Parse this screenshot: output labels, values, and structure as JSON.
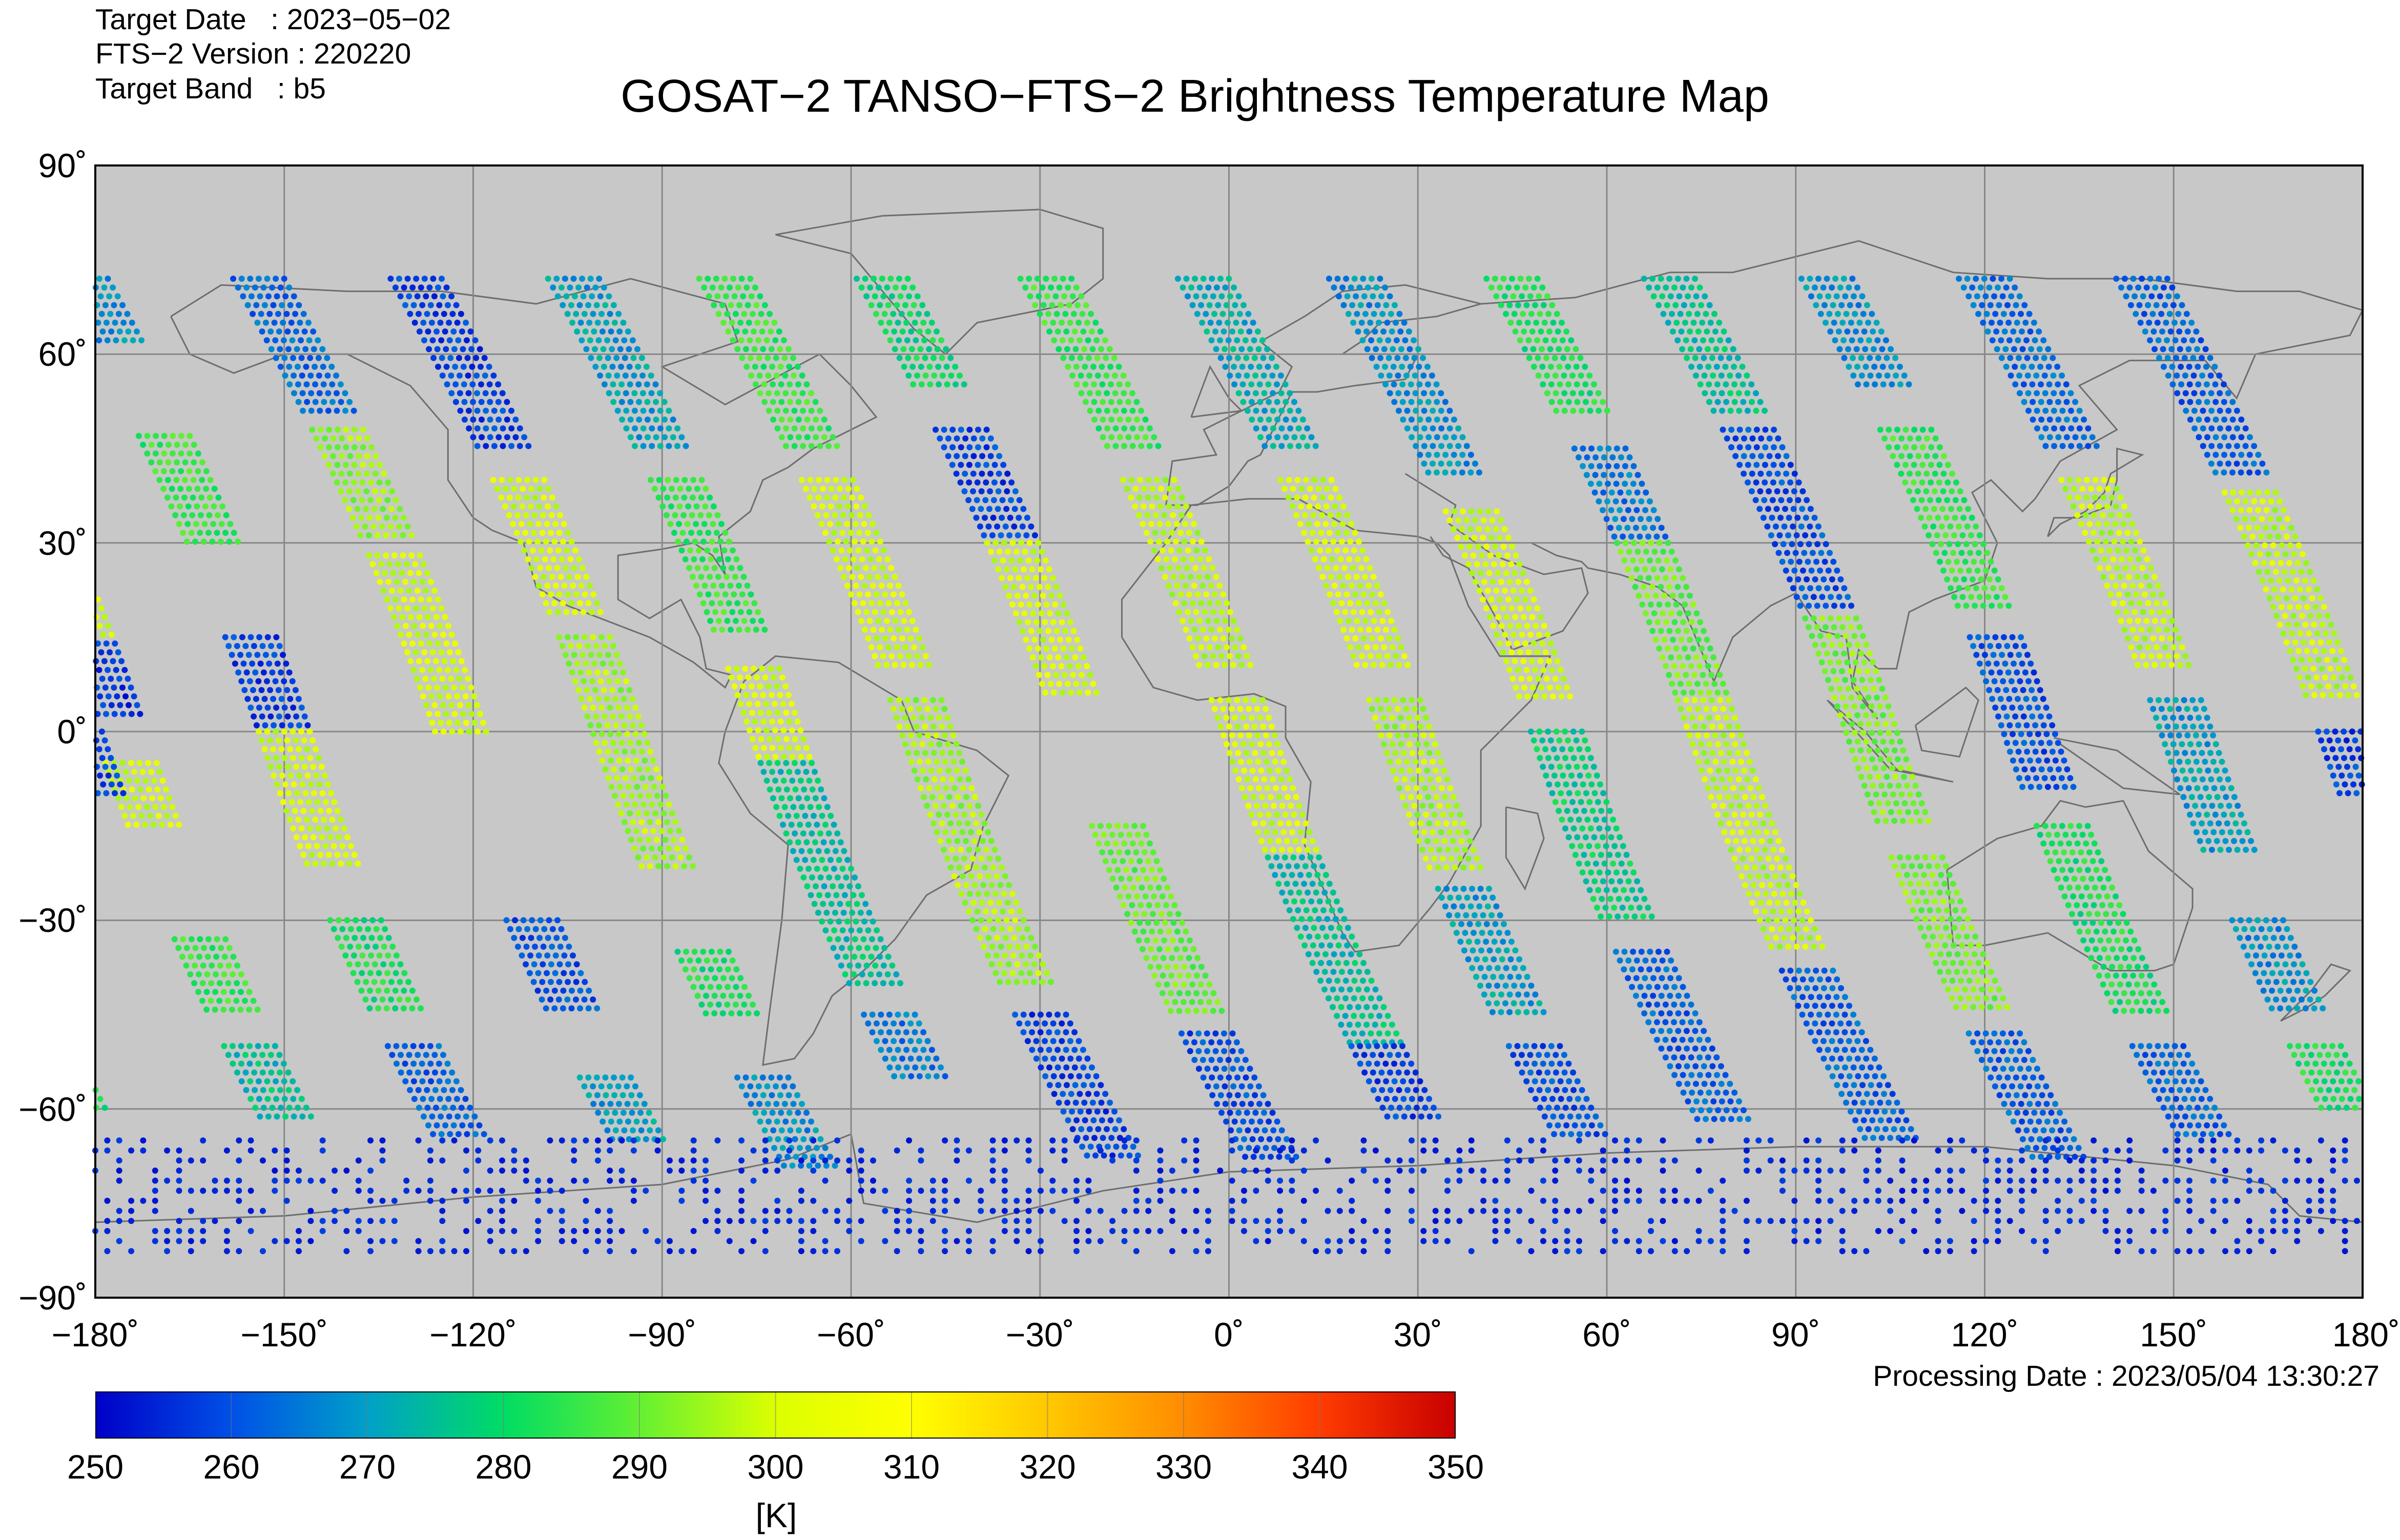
{
  "header": {
    "target_date": "Target Date   : 2023−05−02",
    "fts_version": "FTS−2 Version : 220220",
    "target_band": "Target Band   : b5",
    "title": "GOSAT−2 TANSO−FTS−2 Brightness Temperature Map"
  },
  "map": {
    "background_color": "#c8c8c8",
    "grid_color": "#888888",
    "coast_color": "#6e6e6e",
    "lat_ticks": [
      "90˚",
      "60˚",
      "30˚",
      "0˚",
      "−30˚",
      "−60˚",
      "−90˚"
    ],
    "lon_ticks": [
      "−180˚",
      "−150˚",
      "−120˚",
      "−90˚",
      "−60˚",
      "−30˚",
      "0˚",
      "30˚",
      "60˚",
      "90˚",
      "120˚",
      "150˚",
      "180˚"
    ]
  },
  "footer": {
    "processing_date": "Processing Date : 2023/05/04 13:30:27"
  },
  "colorbar": {
    "ticks": [
      "250",
      "260",
      "270",
      "280",
      "290",
      "300",
      "310",
      "320",
      "330",
      "340",
      "350"
    ],
    "unit": "[K]",
    "colors": [
      "#0000c8",
      "#0050e6",
      "#00a0c8",
      "#00dc64",
      "#64f032",
      "#dcff00",
      "#ffff00",
      "#ffc800",
      "#ff8c00",
      "#ff3c00",
      "#c80000"
    ]
  },
  "chart_data": {
    "type": "map",
    "title": "GOSAT−2 TANSO−FTS−2 Brightness Temperature Map",
    "lon_range": [
      -180,
      180
    ],
    "lat_range": [
      -90,
      90
    ],
    "colorbar_range": [
      250,
      350
    ],
    "colorbar_unit": "[K]",
    "tracks": [
      {
        "equator_lon": -176,
        "segments": [
          {
            "lat": [
              72,
              36
            ],
            "temp": 262
          },
          {
            "lat": [
              35,
              15
            ],
            "temp": 300
          },
          {
            "lat": [
              14,
              2
            ],
            "temp": 256
          },
          {
            "lat": [
              -5,
              -15
            ],
            "temp": 300
          },
          {
            "lat": [
              -33,
              -45
            ],
            "temp": 285
          },
          {
            "lat": [
              -50,
              -62
            ],
            "temp": 275
          }
        ]
      },
      {
        "equator_lon": -150,
        "segments": [
          {
            "lat": [
              72,
              62
            ],
            "temp": 268
          },
          {
            "lat": [
              47,
              30
            ],
            "temp": 285
          },
          {
            "lat": [
              15,
              0
            ],
            "temp": 258
          },
          {
            "lat": [
              0,
              -22
            ],
            "temp": 300
          },
          {
            "lat": [
              -30,
              -45
            ],
            "temp": 282
          },
          {
            "lat": [
              -50,
              -65
            ],
            "temp": 262
          }
        ]
      },
      {
        "equator_lon": -122,
        "segments": [
          {
            "lat": [
              72,
              50
            ],
            "temp": 263
          },
          {
            "lat": [
              48,
              30
            ],
            "temp": 294
          },
          {
            "lat": [
              28,
              0
            ],
            "temp": 300
          },
          {
            "lat": [
              -30,
              -45
            ],
            "temp": 260
          },
          {
            "lat": [
              -55,
              -65
            ],
            "temp": 270
          }
        ]
      },
      {
        "equator_lon": -97,
        "segments": [
          {
            "lat": [
              72,
              45
            ],
            "temp": 258
          },
          {
            "lat": [
              40,
              18
            ],
            "temp": 300
          },
          {
            "lat": [
              15,
              -22
            ],
            "temp": 295
          },
          {
            "lat": [
              -35,
              -45
            ],
            "temp": 282
          },
          {
            "lat": [
              -55,
              -70
            ],
            "temp": 268
          }
        ]
      },
      {
        "equator_lon": -72,
        "segments": [
          {
            "lat": [
              72,
              45
            ],
            "temp": 270
          },
          {
            "lat": [
              40,
              15
            ],
            "temp": 285
          },
          {
            "lat": [
              10,
              -5
            ],
            "temp": 300
          },
          {
            "lat": [
              -5,
              -40
            ],
            "temp": 275
          },
          {
            "lat": [
              -45,
              -55
            ],
            "temp": 265
          }
        ]
      },
      {
        "equator_lon": -48,
        "segments": [
          {
            "lat": [
              72,
              45
            ],
            "temp": 285
          },
          {
            "lat": [
              40,
              10
            ],
            "temp": 300
          },
          {
            "lat": [
              5,
              -40
            ],
            "temp": 295
          },
          {
            "lat": [
              -45,
              -68
            ],
            "temp": 258
          }
        ]
      },
      {
        "equator_lon": -23,
        "segments": [
          {
            "lat": [
              72,
              55
            ],
            "temp": 280
          },
          {
            "lat": [
              48,
              30
            ],
            "temp": 258
          },
          {
            "lat": [
              30,
              5
            ],
            "temp": 300
          },
          {
            "lat": [
              -15,
              -45
            ],
            "temp": 290
          },
          {
            "lat": [
              -48,
              -68
            ],
            "temp": 260
          }
        ]
      },
      {
        "equator_lon": 3,
        "segments": [
          {
            "lat": [
              72,
              45
            ],
            "temp": 285
          },
          {
            "lat": [
              40,
              10
            ],
            "temp": 298
          },
          {
            "lat": [
              5,
              -20
            ],
            "temp": 300
          },
          {
            "lat": [
              -20,
              -50
            ],
            "temp": 275
          },
          {
            "lat": [
              -50,
              -62
            ],
            "temp": 258
          }
        ]
      },
      {
        "equator_lon": 28,
        "segments": [
          {
            "lat": [
              72,
              45
            ],
            "temp": 272
          },
          {
            "lat": [
              40,
              10
            ],
            "temp": 300
          },
          {
            "lat": [
              5,
              -22
            ],
            "temp": 296
          },
          {
            "lat": [
              -25,
              -45
            ],
            "temp": 270
          },
          {
            "lat": [
              -50,
              -65
            ],
            "temp": 260
          }
        ]
      },
      {
        "equator_lon": 52,
        "segments": [
          {
            "lat": [
              72,
              40
            ],
            "temp": 268
          },
          {
            "lat": [
              35,
              5
            ],
            "temp": 300
          },
          {
            "lat": [
              0,
              -30
            ],
            "temp": 278
          },
          {
            "lat": [
              -35,
              -62
            ],
            "temp": 262
          }
        ]
      },
      {
        "equator_lon": 77,
        "segments": [
          {
            "lat": [
              72,
              50
            ],
            "temp": 282
          },
          {
            "lat": [
              45,
              30
            ],
            "temp": 265
          },
          {
            "lat": [
              30,
              5
            ],
            "temp": 290
          },
          {
            "lat": [
              5,
              -35
            ],
            "temp": 298
          },
          {
            "lat": [
              -38,
              -65
            ],
            "temp": 262
          }
        ]
      },
      {
        "equator_lon": 102,
        "segments": [
          {
            "lat": [
              72,
              50
            ],
            "temp": 275
          },
          {
            "lat": [
              48,
              20
            ],
            "temp": 260
          },
          {
            "lat": [
              18,
              -15
            ],
            "temp": 292
          },
          {
            "lat": [
              -20,
              -45
            ],
            "temp": 292
          },
          {
            "lat": [
              -48,
              -68
            ],
            "temp": 262
          }
        ]
      },
      {
        "equator_lon": 127,
        "segments": [
          {
            "lat": [
              72,
              55
            ],
            "temp": 268
          },
          {
            "lat": [
              48,
              20
            ],
            "temp": 285
          },
          {
            "lat": [
              15,
              -10
            ],
            "temp": 260
          },
          {
            "lat": [
              -15,
              -45
            ],
            "temp": 282
          },
          {
            "lat": [
              -50,
              -65
            ],
            "temp": 262
          }
        ]
      },
      {
        "equator_lon": 152,
        "segments": [
          {
            "lat": [
              72,
              45
            ],
            "temp": 263
          },
          {
            "lat": [
              40,
              10
            ],
            "temp": 298
          },
          {
            "lat": [
              5,
              -20
            ],
            "temp": 270
          },
          {
            "lat": [
              -30,
              -45
            ],
            "temp": 268
          },
          {
            "lat": [
              -50,
              -60
            ],
            "temp": 282
          }
        ]
      },
      {
        "equator_lon": 177,
        "segments": [
          {
            "lat": [
              72,
              40
            ],
            "temp": 262
          },
          {
            "lat": [
              38,
              5
            ],
            "temp": 298
          },
          {
            "lat": [
              0,
              -10
            ],
            "temp": 258
          }
        ]
      }
    ],
    "antarctic_band": {
      "lat": [
        -65,
        -83
      ],
      "temp": 252
    }
  }
}
